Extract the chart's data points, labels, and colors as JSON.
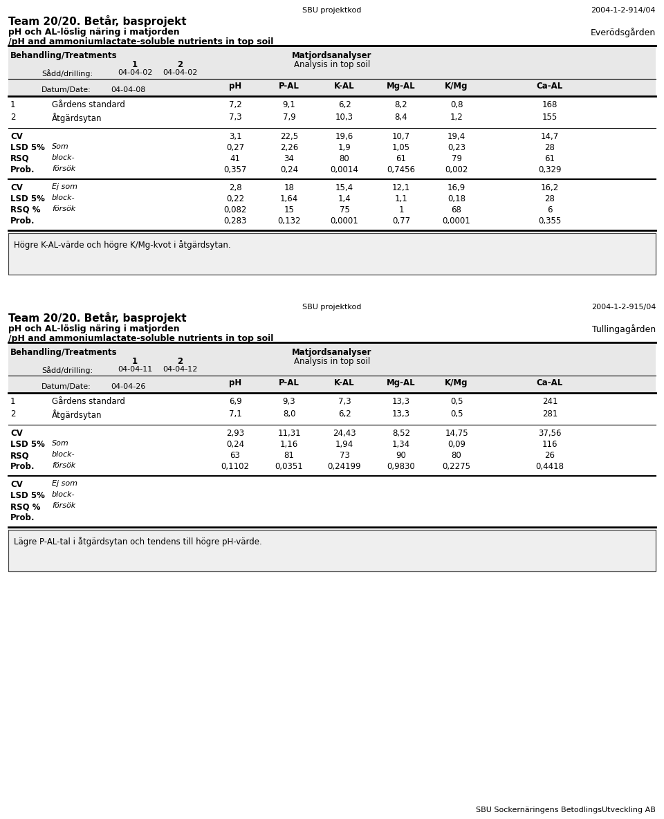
{
  "page_bg": "#ffffff",
  "fig_width": 9.6,
  "fig_height": 11.84,
  "top_header": {
    "sbu_label": "SBU projektkod",
    "sbu_code_1": "2004-1-2-914/04",
    "sbu_code_2": "2004-1-2-915/04"
  },
  "section1": {
    "title_bold": "Team 20/20. Betår, basprojekt",
    "subtitle1": "pH och AL-löslig näring i matjorden",
    "subtitle2": "/pH and ammoniumlactate-soluble nutrients in top soil",
    "location": "Everödsgården",
    "header_left": "Behandling/Treatments",
    "header_center": "Matjordsanalyser",
    "header_center2": "Analysis in top soil",
    "col1_label": "1",
    "col2_label": "2",
    "sadd_label": "Sådd/drilling:",
    "sadd_val1": "04-04-02",
    "sadd_val2": "04-04-02",
    "datum_label": "Datum/Date:",
    "datum_val": "04-04-08",
    "col_headers": [
      "pH",
      "P-AL",
      "K-AL",
      "Mg-AL",
      "K/Mg",
      "Ca-AL"
    ],
    "rows": [
      {
        "num": "1",
        "name": "Gårdens standard",
        "vals": [
          "7,2",
          "9,1",
          "6,2",
          "8,2",
          "0,8",
          "168"
        ]
      },
      {
        "num": "2",
        "name": "Åtgärdsytan",
        "vals": [
          "7,3",
          "7,9",
          "10,3",
          "8,4",
          "1,2",
          "155"
        ]
      }
    ],
    "stat_block1": {
      "rows": [
        {
          "label": "CV",
          "sub": "",
          "vals": [
            "3,1",
            "22,5",
            "19,6",
            "10,7",
            "19,4",
            "14,7"
          ]
        },
        {
          "label": "LSD 5%",
          "sub": "Som",
          "vals": [
            "0,27",
            "2,26",
            "1,9",
            "1,05",
            "0,23",
            "28"
          ]
        },
        {
          "label": "RSQ",
          "sub": "block-",
          "vals": [
            "41",
            "34",
            "80",
            "61",
            "79",
            "61"
          ]
        },
        {
          "label": "Prob.",
          "sub": "försök",
          "vals": [
            "0,357",
            "0,24",
            "0,0014",
            "0,7456",
            "0,002",
            "0,329"
          ]
        }
      ]
    },
    "stat_block2": {
      "rows": [
        {
          "label": "CV",
          "sub": "Ej som",
          "vals": [
            "2,8",
            "18",
            "15,4",
            "12,1",
            "16,9",
            "16,2"
          ]
        },
        {
          "label": "LSD 5%",
          "sub": "block-",
          "vals": [
            "0,22",
            "1,64",
            "1,4",
            "1,1",
            "0,18",
            "28"
          ]
        },
        {
          "label": "RSQ %",
          "sub": "försök",
          "vals": [
            "0,082",
            "15",
            "75",
            "1",
            "68",
            "6"
          ]
        },
        {
          "label": "Prob.",
          "sub": "",
          "vals": [
            "0,283",
            "0,132",
            "0,0001",
            "0,77",
            "0,0001",
            "0,355"
          ]
        }
      ]
    },
    "note": "Högre K-AL-värde och högre K/Mg-kvot i åtgärdsytan."
  },
  "section2": {
    "title_bold": "Team 20/20. Betår, basprojekt",
    "subtitle1": "pH och AL-löslig näring i matjorden",
    "subtitle2": "/pH and ammoniumlactate-soluble nutrients in top soil",
    "location": "Tullingagården",
    "header_left": "Behandling/Treatments",
    "header_center": "Matjordsanalyser",
    "header_center2": "Analysis in top soil",
    "col1_label": "1",
    "col2_label": "2",
    "sadd_label": "Sådd/drilling:",
    "sadd_val1": "04-04-11",
    "sadd_val2": "04-04-12",
    "datum_label": "Datum/Date:",
    "datum_val": "04-04-26",
    "col_headers": [
      "pH",
      "P-AL",
      "K-AL",
      "Mg-AL",
      "K/Mg",
      "Ca-AL"
    ],
    "rows": [
      {
        "num": "1",
        "name": "Gårdens standard",
        "vals": [
          "6,9",
          "9,3",
          "7,3",
          "13,3",
          "0,5",
          "241"
        ]
      },
      {
        "num": "2",
        "name": "Åtgärdsytan",
        "vals": [
          "7,1",
          "8,0",
          "6,2",
          "13,3",
          "0,5",
          "281"
        ]
      }
    ],
    "stat_block1": {
      "rows": [
        {
          "label": "CV",
          "sub": "",
          "vals": [
            "2,93",
            "11,31",
            "24,43",
            "8,52",
            "14,75",
            "37,56"
          ]
        },
        {
          "label": "LSD 5%",
          "sub": "Som",
          "vals": [
            "0,24",
            "1,16",
            "1,94",
            "1,34",
            "0,09",
            "116"
          ]
        },
        {
          "label": "RSQ",
          "sub": "block-",
          "vals": [
            "63",
            "81",
            "73",
            "90",
            "80",
            "26"
          ]
        },
        {
          "label": "Prob.",
          "sub": "försök",
          "vals": [
            "0,1102",
            "0,0351",
            "0,24199",
            "0,9830",
            "0,2275",
            "0,4418"
          ]
        }
      ]
    },
    "stat_block2": {
      "rows": [
        {
          "label": "CV",
          "sub": "Ej som",
          "vals": [
            "",
            "",
            "",
            "",
            "",
            ""
          ]
        },
        {
          "label": "LSD 5%",
          "sub": "block-",
          "vals": [
            "",
            "",
            "",
            "",
            "",
            ""
          ]
        },
        {
          "label": "RSQ %",
          "sub": "försök",
          "vals": [
            "",
            "",
            "",
            "",
            "",
            ""
          ]
        },
        {
          "label": "Prob.",
          "sub": "",
          "vals": [
            "",
            "",
            "",
            "",
            "",
            ""
          ]
        }
      ]
    },
    "note": "Lägre P-AL-tal i åtgärdsytan och tendens till högre pH-värde."
  },
  "footer": "SBU Sockernäringens BetodlingsUtveckling AB"
}
